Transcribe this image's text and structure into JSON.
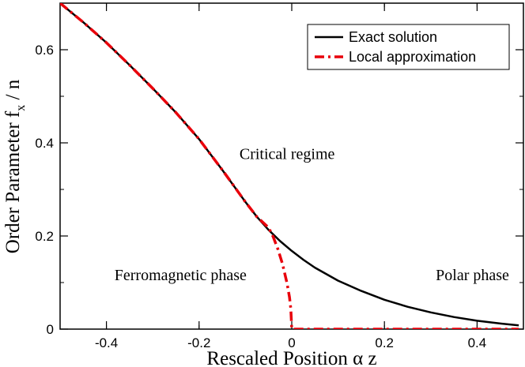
{
  "chart_data": {
    "type": "line",
    "xlabel": "Rescaled Position  α z",
    "ylabel_main": "Order Parameter  f",
    "ylabel_sub": "x",
    "ylabel_tail": " / n",
    "xlim": [
      -0.5,
      0.5
    ],
    "ylim": [
      0,
      0.7
    ],
    "x_ticks": [
      -0.4,
      -0.2,
      0,
      0.2,
      0.4
    ],
    "x_tick_labels": [
      "-0.4",
      "-0.2",
      "0",
      "0.2",
      "0.4"
    ],
    "y_ticks": [
      0,
      0.2,
      0.4,
      0.6
    ],
    "y_tick_labels": [
      "0",
      "0.2",
      "0.4",
      "0.6"
    ],
    "legend_position": "top-right",
    "annotations": [
      {
        "text": "Critical regime",
        "x": -0.01,
        "y": 0.365
      },
      {
        "text": "Ferromagnetic phase",
        "x": -0.24,
        "y": 0.105
      },
      {
        "text": "Polar phase",
        "x": 0.39,
        "y": 0.105
      }
    ],
    "series": [
      {
        "name": "Exact solution",
        "color": "#000000",
        "style": "solid",
        "x": [
          -0.5,
          -0.45,
          -0.4,
          -0.35,
          -0.3,
          -0.25,
          -0.2,
          -0.15,
          -0.1,
          -0.075,
          -0.05,
          -0.025,
          0,
          0.025,
          0.05,
          0.1,
          0.15,
          0.2,
          0.25,
          0.3,
          0.35,
          0.4,
          0.45,
          0.49
        ],
        "y": [
          0.7,
          0.659,
          0.615,
          0.567,
          0.517,
          0.465,
          0.408,
          0.342,
          0.273,
          0.241,
          0.213,
          0.189,
          0.168,
          0.149,
          0.132,
          0.104,
          0.082,
          0.063,
          0.048,
          0.036,
          0.026,
          0.018,
          0.012,
          0.008
        ]
      },
      {
        "name": "Local approximation",
        "color": "#e8000b",
        "style": "dashdot",
        "x": [
          -0.5,
          -0.45,
          -0.4,
          -0.35,
          -0.3,
          -0.25,
          -0.2,
          -0.15,
          -0.1,
          -0.075,
          -0.05,
          -0.04,
          -0.03,
          -0.02,
          -0.01,
          -0.005,
          -0.002,
          0,
          0.1,
          0.2,
          0.3,
          0.4,
          0.49
        ],
        "y": [
          0.7,
          0.659,
          0.615,
          0.567,
          0.517,
          0.465,
          0.408,
          0.342,
          0.273,
          0.241,
          0.218,
          0.198,
          0.172,
          0.14,
          0.098,
          0.069,
          0.044,
          0,
          0,
          0,
          0,
          0,
          0
        ]
      }
    ]
  }
}
